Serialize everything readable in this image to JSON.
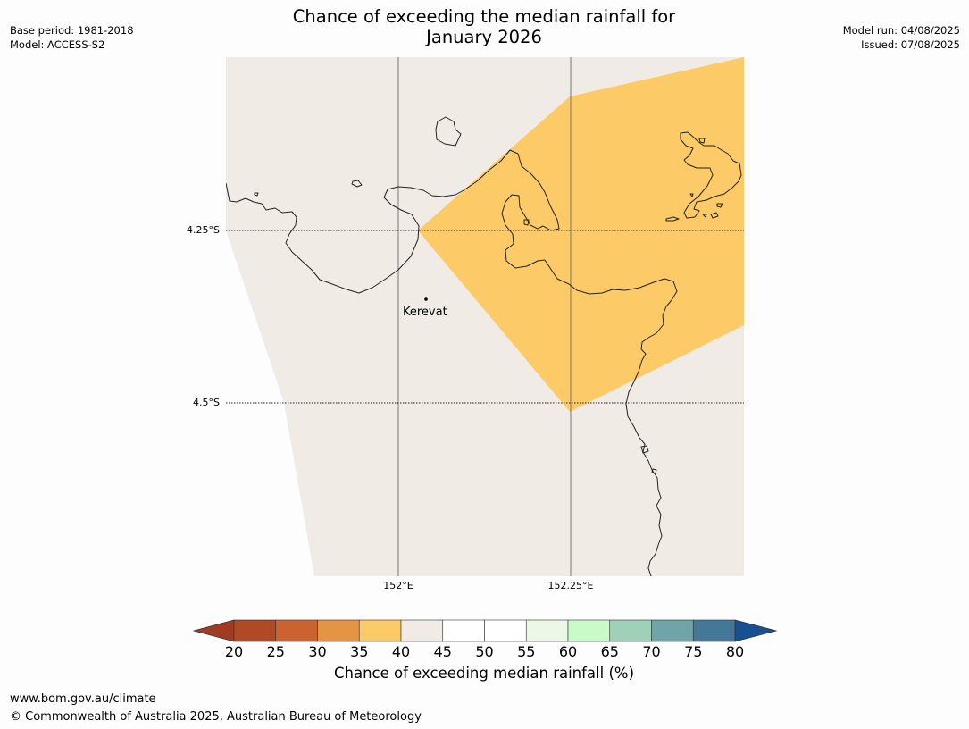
{
  "title": {
    "line1": "Chance of exceeding the median rainfall for",
    "line2": "January 2026"
  },
  "meta": {
    "base_period": "Base period: 1981-2018",
    "model": "Model: ACCESS-S2",
    "model_run": "Model run: 04/08/2025",
    "issued": "Issued: 07/08/2025"
  },
  "map": {
    "lat_labels": [
      "4.25°S",
      "4.5°S"
    ],
    "lon_labels": [
      "152°E",
      "152.25°E"
    ],
    "place": "Kerevat",
    "colors": {
      "background_land": "#f0ebe5",
      "band_35_40": "#fdca68",
      "coast": "#222222"
    }
  },
  "colorbar": {
    "title": "Chance of exceeding median rainfall (%)",
    "ticks": [
      "20",
      "25",
      "30",
      "35",
      "40",
      "45",
      "50",
      "55",
      "60",
      "65",
      "70",
      "75",
      "80"
    ],
    "colors": [
      "#a23b24",
      "#b04a24",
      "#cb6330",
      "#e39545",
      "#fdca68",
      "#f0ebe5",
      "#ffffff",
      "#ffffff",
      "#ebf8e8",
      "#c8fbc8",
      "#9ed1b8",
      "#6fa5a6",
      "#437898",
      "#175192"
    ]
  },
  "footer": {
    "url": "www.bom.gov.au/climate",
    "copyright": "© Commonwealth of Australia 2025, Australian Bureau of Meteorology"
  }
}
